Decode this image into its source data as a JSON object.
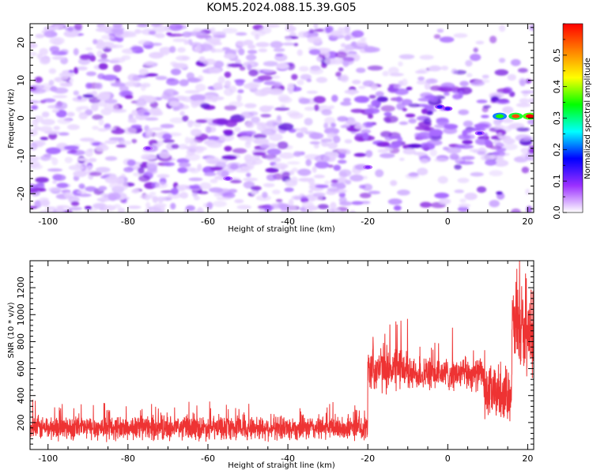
{
  "title": "KOM5.2024.088.15.39.G05",
  "chart_data": [
    {
      "type": "heatmap",
      "xlabel": "Height of straight line (km)",
      "ylabel": "Frequency (Hz)",
      "xlim": [
        -104.5,
        21.5
      ],
      "ylim": [
        -25,
        25
      ],
      "xticks": [
        -100,
        -80,
        -60,
        -40,
        -20,
        0,
        20
      ],
      "yticks": [
        -20,
        -10,
        0,
        10,
        20
      ],
      "colorbar": {
        "label": "Normalized spectral amplitude",
        "range": [
          0.0,
          0.6
        ],
        "ticks": [
          0.0,
          0.1,
          0.2,
          0.3,
          0.4,
          0.5
        ],
        "colors": [
          "#ffffff",
          "#9b30ff",
          "#0000ff",
          "#00ffff",
          "#00ff00",
          "#ffff00",
          "#ff8000",
          "#ff0000"
        ]
      },
      "hotspots": [
        {
          "x": 13,
          "y": 0.5,
          "value": 0.35
        },
        {
          "x": 17,
          "y": 0.5,
          "value": 0.55
        },
        {
          "x": 20.5,
          "y": 0.5,
          "value": 0.6
        },
        {
          "x": -2,
          "y": 3,
          "value": 0.15
        },
        {
          "x": 0,
          "y": 2.5,
          "value": 0.14
        },
        {
          "x": 8,
          "y": -4,
          "value": 0.12
        },
        {
          "x": -75,
          "y": -8,
          "value": 0.1
        },
        {
          "x": -55,
          "y": -16,
          "value": 0.1
        },
        {
          "x": -20,
          "y": -13,
          "value": 0.1
        }
      ]
    },
    {
      "type": "line",
      "xlabel": "Height of straight line (km)",
      "ylabel": "SNR (10 * v/v)",
      "xlim": [
        -104.5,
        21.5
      ],
      "ylim": [
        0,
        1400
      ],
      "xticks": [
        -100,
        -80,
        -60,
        -40,
        -20,
        0,
        20
      ],
      "yticks": [
        200,
        400,
        600,
        800,
        1000,
        1200
      ],
      "series": [
        {
          "color": "#ee3333",
          "segments": [
            {
              "x_start": -104.5,
              "x_end": -20,
              "mean": 160,
              "spread": 90
            },
            {
              "x_start": -20,
              "x_end": -10,
              "mean": 600,
              "spread": 170
            },
            {
              "x_start": -10,
              "x_end": 9,
              "mean": 560,
              "spread": 120
            },
            {
              "x_start": 9,
              "x_end": 16,
              "mean": 420,
              "spread": 200
            },
            {
              "x_start": 16,
              "x_end": 19,
              "mean": 900,
              "spread": 350
            },
            {
              "x_start": 19,
              "x_end": 21.5,
              "mean": 800,
              "spread": 250
            }
          ]
        }
      ]
    }
  ]
}
